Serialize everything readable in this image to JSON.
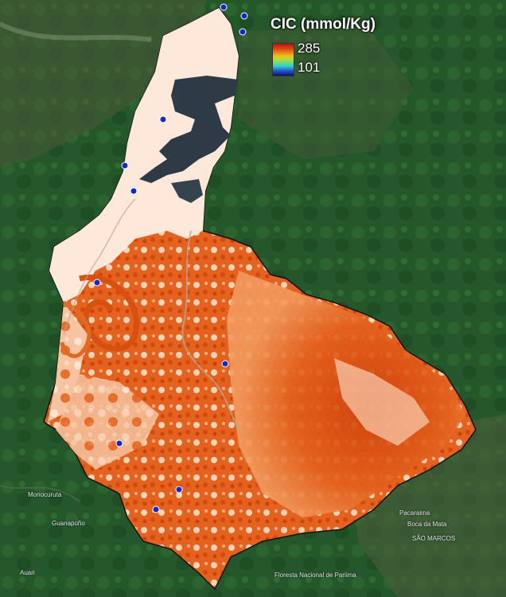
{
  "legend": {
    "title": "CIC (mmol/Kg)",
    "max_label": "285",
    "min_label": "101"
  },
  "colors": {
    "basemap_forest": "#24582a",
    "basin_high": "#d9480a",
    "basin_mid": "#f08a4a",
    "basin_low": "#fde6d8",
    "reservoir": "#2e3a45",
    "boundary": "#111111",
    "station": "#1328c8"
  },
  "place_labels": {
    "paracuama": "Pacaraima",
    "boca_mata": "Boca da Mata",
    "sao_marcos": "SÃO MARCOS",
    "floresta": "Floresta Nacional de Pariima",
    "monocuruta": "Monocuruta",
    "guanapuno": "Guanapuño",
    "auari": "Auari"
  }
}
